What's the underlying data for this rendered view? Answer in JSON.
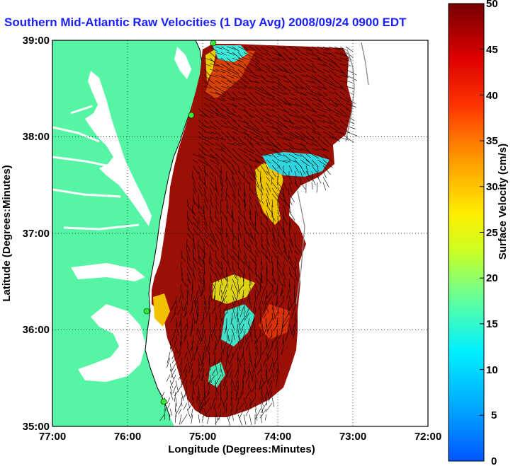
{
  "title": "Southern Mid-Atlantic Raw Velocities (1 Day Avg) 2008/09/24 0900 EDT",
  "xlabel": "Longitude (Degrees:Minutes)",
  "ylabel": "Latitude (Degrees:Minutes)",
  "x_ticks": [
    "77:00",
    "76:00",
    "75:00",
    "74:00",
    "73:00",
    "72:00"
  ],
  "y_ticks": [
    "39:00",
    "38:00",
    "37:00",
    "36:00",
    "35:00"
  ],
  "colorbar": {
    "label": "Surface Velocity (cm/s)",
    "ticks": [
      "0",
      "5",
      "10",
      "15",
      "20",
      "25",
      "30",
      "35",
      "40",
      "45",
      "50"
    ],
    "min": 0,
    "max": 50
  },
  "colors": {
    "land": "#55f5a5",
    "ocean": "#ffffff",
    "title": "#1a20ff",
    "vectors": "#000000",
    "station": "#33ee33"
  },
  "chart_data": {
    "type": "heatmap",
    "title": "Southern Mid-Atlantic Raw Velocities (1 Day Avg) 2008/09/24 0900 EDT",
    "xlabel": "Longitude (Degrees:Minutes)",
    "ylabel": "Latitude (Degrees:Minutes)",
    "xlim": [
      "77:00 W",
      "72:00 W"
    ],
    "ylim": [
      "35:00 N",
      "39:00 N"
    ],
    "grid": true,
    "colorbar_range_cm_s": [
      0,
      50
    ],
    "colorbar_label": "Surface Velocity (cm/s)",
    "overlay": "current velocity vectors (arrows)"
  }
}
